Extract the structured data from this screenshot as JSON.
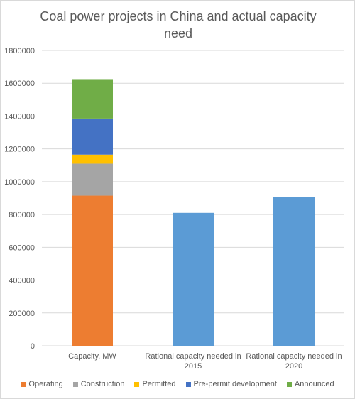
{
  "chart_data": {
    "type": "bar",
    "title": "Coal power projects in China and actual capacity\nneed",
    "categories": [
      "Capacity, MW",
      "Rational capacity needed in 2015",
      "Rational capacity needed in 2020"
    ],
    "category_lines": [
      [
        "Capacity, MW"
      ],
      [
        "Rational capacity needed in",
        "2015"
      ],
      [
        "Rational capacity needed in",
        "2020"
      ]
    ],
    "stacked": true,
    "series": [
      {
        "name": "Operating",
        "color": "#ed7d31",
        "values": [
          915000,
          null,
          null
        ]
      },
      {
        "name": "Construction",
        "color": "#a5a5a5",
        "values": [
          195000,
          null,
          null
        ]
      },
      {
        "name": "Permitted",
        "color": "#ffc000",
        "values": [
          55000,
          null,
          null
        ]
      },
      {
        "name": "Pre-permit development",
        "color": "#4472c4",
        "values": [
          220000,
          null,
          null
        ]
      },
      {
        "name": "Announced",
        "color": "#70ad47",
        "values": [
          240000,
          null,
          null
        ]
      },
      {
        "color": "#5b9bd5",
        "values": [
          null,
          810000,
          908000
        ]
      }
    ],
    "ylim": [
      0,
      1800000
    ],
    "yticks": [
      0,
      200000,
      400000,
      600000,
      800000,
      1000000,
      1200000,
      1400000,
      1600000,
      1800000
    ],
    "grid": true,
    "legend_position": "bottom"
  }
}
